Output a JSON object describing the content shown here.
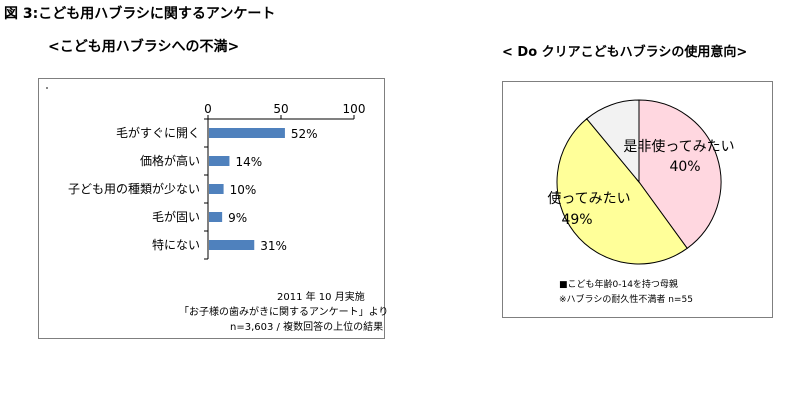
{
  "title": "図 3:こども用ハブラシに関するアンケート",
  "left_subtitle": "<こども用ハブラシへの不満>",
  "right_subtitle": "<  Do クリアこどもハブラシの使用意向>",
  "left_note": {
    "line1": "2011 年 10 月実施",
    "line2": "「お子様の歯みがきに関するアンケート」より",
    "line3": "n=3,603  /  複数回答の上位の結果"
  },
  "right_note": {
    "line1": "■こども年齢0-14を持つ母親",
    "line2": "※ハブラシの耐久性不満者    n=55"
  },
  "colors": {
    "bar": "#4f81bd",
    "pie_yes": "#ffd7e0",
    "pie_maybe": "#ffff99",
    "pie_other": "#f2f2f2"
  },
  "chart_data": [
    {
      "type": "bar",
      "orientation": "horizontal",
      "categories": [
        "毛がすぐに開く",
        "価格が高い",
        "子ども用の種類が少ない",
        "毛が固い",
        "特にない"
      ],
      "values": [
        52,
        14,
        10,
        9,
        31
      ],
      "data_labels": [
        "52%",
        "14%",
        "10%",
        "9%",
        "31%"
      ],
      "xlim": [
        0,
        100
      ],
      "xticks": [
        "0",
        "50",
        "100"
      ]
    },
    {
      "type": "pie",
      "slices": [
        {
          "label": "是非使ってみたい",
          "value": 40,
          "value_label": "40%"
        },
        {
          "label": "使ってみたい",
          "value": 49,
          "value_label": "49%"
        },
        {
          "label": "",
          "value": 11,
          "value_label": ""
        }
      ]
    }
  ]
}
